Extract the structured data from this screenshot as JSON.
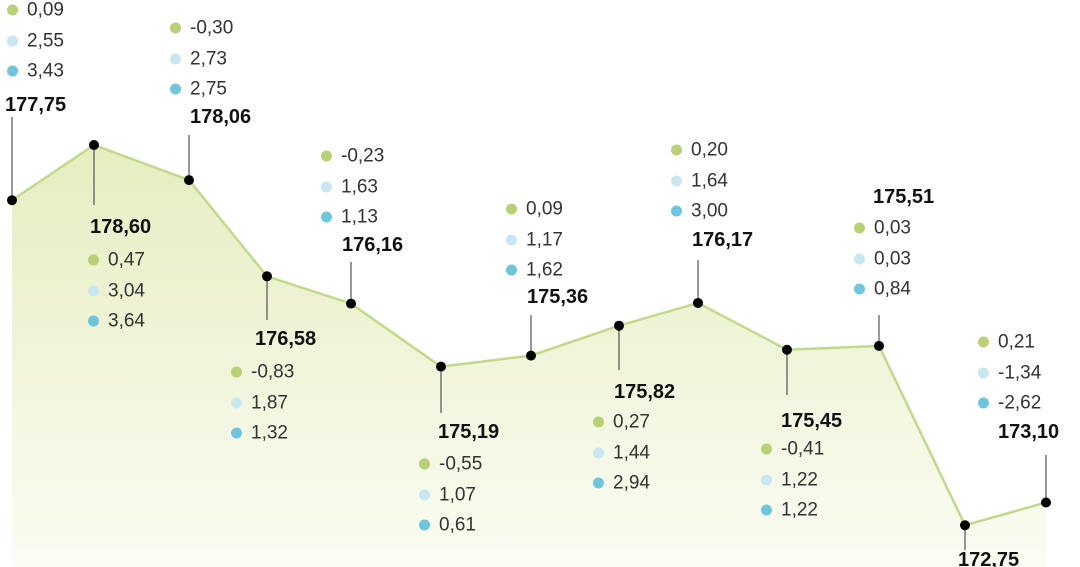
{
  "chart_data": {
    "type": "area",
    "grid": false,
    "legend": "none",
    "colors": {
      "line": "#c3d98a",
      "fill_top": "#e6edc0",
      "fill_bottom": "#fbfcf3",
      "marker": "#000000",
      "annotation_1": "#b9d174",
      "annotation_2": "#c8e7f1",
      "annotation_3": "#6ec6de"
    },
    "values": [
      177.75,
      178.6,
      178.06,
      176.58,
      176.16,
      175.19,
      175.36,
      175.82,
      176.17,
      175.45,
      175.51,
      172.75,
      173.1
    ],
    "value_labels": [
      "177,75",
      "178,60",
      "178,06",
      "176,58",
      "176,16",
      "175,19",
      "175,36",
      "175,82",
      "176,17",
      "175,45",
      "175,51",
      "172,75",
      "173,10"
    ],
    "annotations": [
      [
        "0,09",
        "2,55",
        "3,43"
      ],
      [
        "0,47",
        "3,04",
        "3,64"
      ],
      [
        "-0,30",
        "2,73",
        "2,75"
      ],
      [
        "-0,83",
        "1,87",
        "1,32"
      ],
      [
        "-0,23",
        "1,63",
        "1,13"
      ],
      [
        "-0,55",
        "1,07",
        "0,61"
      ],
      [
        "0,09",
        "1,17",
        "1,62"
      ],
      [
        "0,27",
        "1,44",
        "2,94"
      ],
      [
        "0,20",
        "1,64",
        "3,00"
      ],
      [
        "-0,41",
        "1,22",
        "1,22"
      ],
      [
        "0,03",
        "0,03",
        "0,84"
      ],
      null,
      [
        "0,21",
        "-1,34",
        "-2,62"
      ]
    ]
  }
}
